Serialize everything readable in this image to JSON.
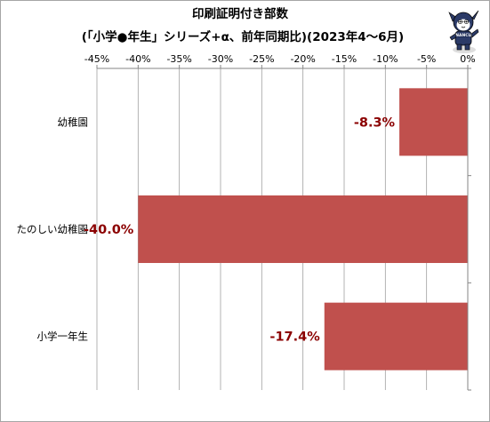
{
  "chart_data": {
    "type": "bar",
    "orientation": "horizontal",
    "title": "印刷証明付き部数",
    "subtitle": "(「小学●年生」シリーズ+α、前年同期比)(2023年4〜6月)",
    "categories": [
      "幼稚園",
      "たのしい幼稚園",
      "小学一年生"
    ],
    "values": [
      -8.3,
      -40.0,
      -17.4
    ],
    "data_labels": [
      "-8.3%",
      "-40.0%",
      "-17.4%"
    ],
    "xlim": [
      -45,
      0
    ],
    "ticks": [
      -45,
      -40,
      -35,
      -30,
      -25,
      -20,
      -15,
      -10,
      -5,
      0
    ],
    "tick_labels": [
      "-45%",
      "-40%",
      "-35%",
      "-30%",
      "-25%",
      "-20%",
      "-15%",
      "-10%",
      "-5%",
      "0%"
    ],
    "xlabel": "",
    "ylabel": "",
    "grid": "vertical",
    "legend": "none",
    "colors": {
      "bar": "#c0504d",
      "data_label": "#8b0000",
      "grid": "#a0a0a0",
      "axis": "#868686"
    }
  },
  "mascot": {
    "icon": "mascot-icon",
    "badge_text": "FINANCIAL"
  }
}
